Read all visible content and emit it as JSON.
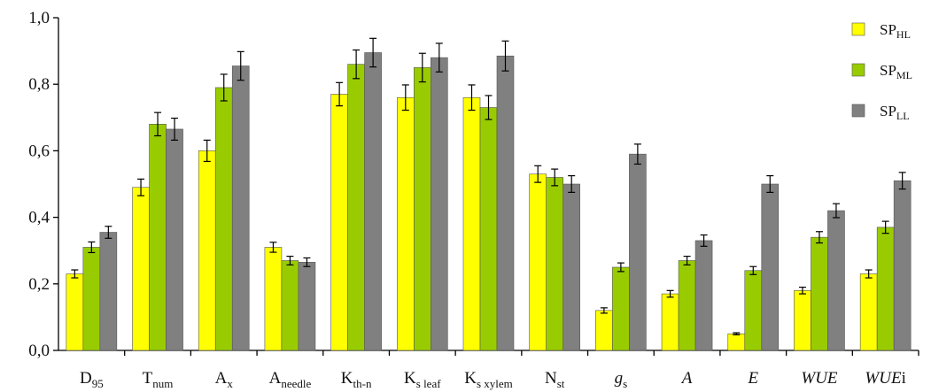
{
  "chart_data": {
    "type": "bar",
    "ylim": [
      0,
      1.0
    ],
    "grid": false,
    "legend_position": "top-right",
    "y_ticks": [
      "0,0",
      "0,2",
      "0,4",
      "0,6",
      "0,8",
      "1,0"
    ],
    "y_tick_values": [
      0,
      0.2,
      0.4,
      0.6,
      0.8,
      1.0
    ],
    "categories": [
      {
        "base": "D",
        "sub": "95",
        "italic": false
      },
      {
        "base": "T",
        "sub": "num",
        "italic": false
      },
      {
        "base": "A",
        "sub": "x",
        "italic": false
      },
      {
        "base": "A",
        "sub": "needle",
        "italic": false
      },
      {
        "base": "K",
        "sub": "th-n",
        "italic": false
      },
      {
        "base": "K",
        "sub": "s leaf",
        "italic": false
      },
      {
        "base": "K",
        "sub": "s xylem",
        "italic": false
      },
      {
        "base": "N",
        "sub": "st",
        "italic": false
      },
      {
        "base": "g",
        "sub": "s",
        "italic": true
      },
      {
        "base": "A",
        "sub": "",
        "italic": true
      },
      {
        "base": "E",
        "sub": "",
        "italic": true
      },
      {
        "base": "WUE",
        "sub": "",
        "italic": true
      },
      {
        "base": "WUE",
        "suffix": "i",
        "sub": "",
        "italic": true
      }
    ],
    "series": [
      {
        "name": "SP",
        "name_sub": "HL",
        "color": "#ffff00",
        "values": [
          0.23,
          0.49,
          0.6,
          0.31,
          0.77,
          0.76,
          0.76,
          0.53,
          0.12,
          0.17,
          0.05,
          0.18,
          0.23
        ],
        "errors": [
          0.012,
          0.025,
          0.032,
          0.015,
          0.035,
          0.038,
          0.038,
          0.025,
          0.008,
          0.01,
          0.003,
          0.01,
          0.012
        ]
      },
      {
        "name": "SP",
        "name_sub": "ML",
        "color": "#99cc00",
        "values": [
          0.31,
          0.68,
          0.79,
          0.27,
          0.86,
          0.85,
          0.73,
          0.52,
          0.25,
          0.27,
          0.24,
          0.34,
          0.37
        ],
        "errors": [
          0.016,
          0.035,
          0.04,
          0.013,
          0.043,
          0.043,
          0.036,
          0.025,
          0.013,
          0.013,
          0.012,
          0.017,
          0.018
        ]
      },
      {
        "name": "SP",
        "name_sub": "LL",
        "color": "#808080",
        "values": [
          0.355,
          0.665,
          0.855,
          0.265,
          0.895,
          0.88,
          0.885,
          0.5,
          0.59,
          0.33,
          0.5,
          0.42,
          0.51
        ],
        "errors": [
          0.018,
          0.033,
          0.043,
          0.013,
          0.043,
          0.043,
          0.045,
          0.025,
          0.03,
          0.017,
          0.025,
          0.021,
          0.025
        ]
      }
    ]
  }
}
